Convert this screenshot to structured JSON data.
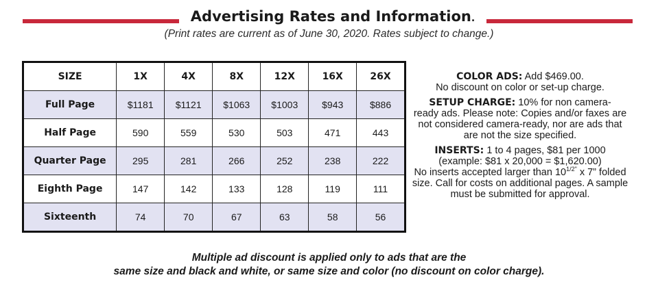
{
  "header": {
    "title": "Advertising Rates and Information",
    "title_period": ".",
    "subtitle": "(Print rates are current as of June 30, 2020. Rates subject to change.)",
    "accent_color": "#c8283b"
  },
  "table": {
    "columns": [
      "SIZE",
      "1X",
      "4X",
      "8X",
      "12X",
      "16X",
      "26X"
    ],
    "rows": [
      {
        "size": "Full Page",
        "values": [
          "$1181",
          "$1121",
          "$1063",
          "$1003",
          "$943",
          "$886"
        ]
      },
      {
        "size": "Half Page",
        "values": [
          "590",
          "559",
          "530",
          "503",
          "471",
          "443"
        ]
      },
      {
        "size": "Quarter Page",
        "values": [
          "295",
          "281",
          "266",
          "252",
          "238",
          "222"
        ]
      },
      {
        "size": "Eighth Page",
        "values": [
          "147",
          "142",
          "133",
          "128",
          "119",
          "111"
        ]
      },
      {
        "size": "Sixteenth",
        "values": [
          "74",
          "70",
          "67",
          "63",
          "58",
          "56"
        ]
      }
    ],
    "shade_color": "#e2e2f2"
  },
  "info": {
    "color_ads": {
      "label": "COLOR ADS:",
      "line1": "Add $469.00.",
      "line2": "No discount on color or set-up charge."
    },
    "setup_charge": {
      "label": "SETUP CHARGE:",
      "line1": "10% for non camera-",
      "line2": "ready ads. Please note: Copies and/or faxes are",
      "line3": "not considered camera-ready, nor are ads that",
      "line4": "are not the size specified."
    },
    "inserts": {
      "label": "INSERTS:",
      "line1": "1 to 4 pages, $81 per 1000",
      "line2": "(example: $81 x 20,000 = $1,620.00)",
      "line3_a": "No inserts accepted larger than 10",
      "line3_sup": "1/2\"",
      "line3_b": " x 7” folded",
      "line4": "size. Call for costs on additional pages. A sample",
      "line5": "must be submitted for approval."
    }
  },
  "footer": {
    "line1": "Multiple ad discount is applied only to ads that are the",
    "line2": "same size and black and white, or same size and color (no discount on color charge)."
  }
}
